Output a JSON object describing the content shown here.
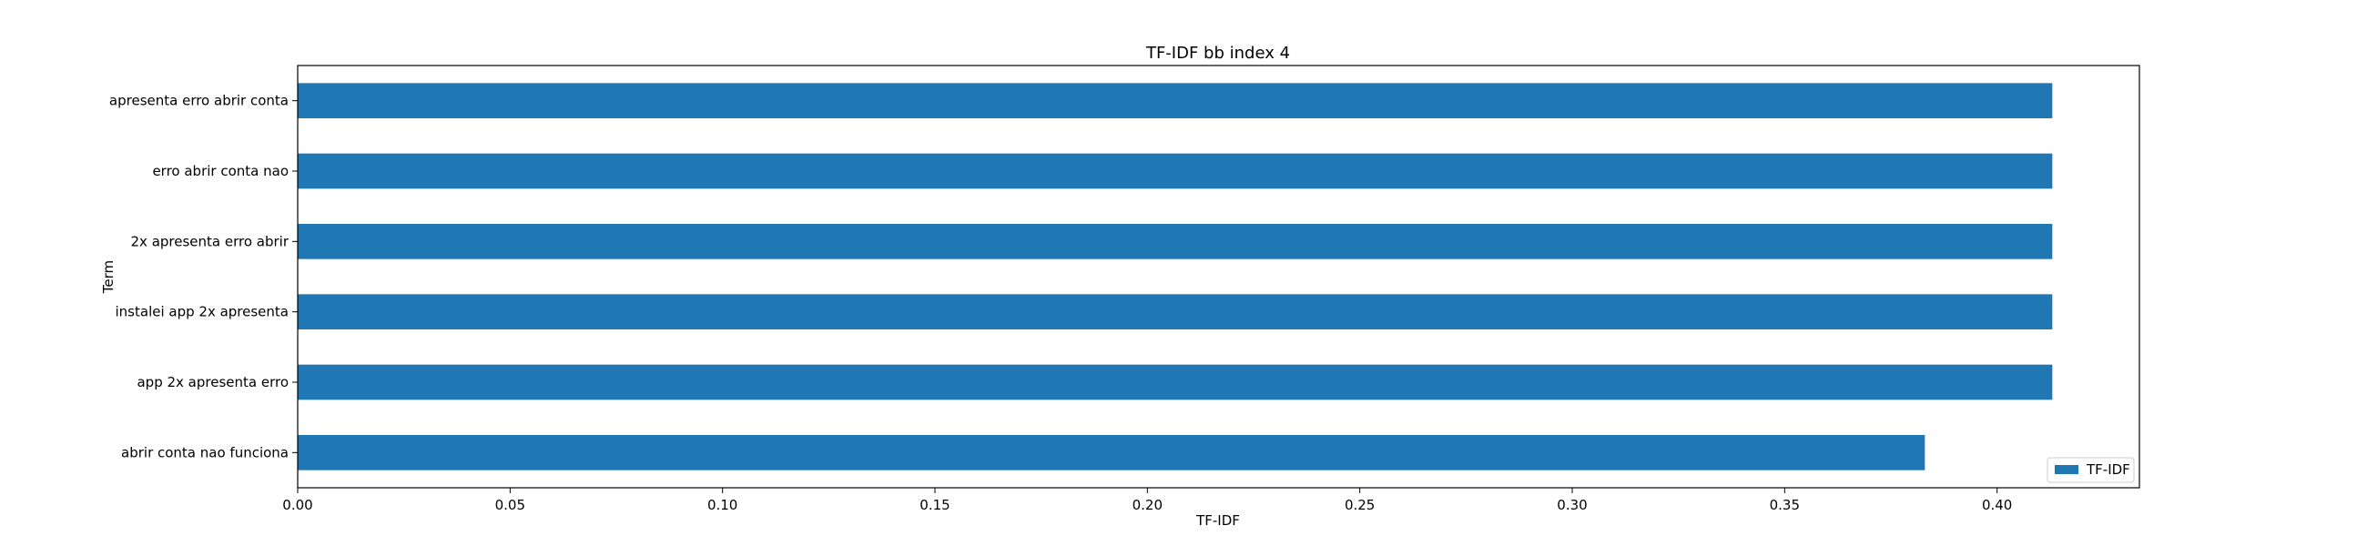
{
  "chart_data": {
    "type": "bar",
    "orientation": "horizontal",
    "title": "TF-IDF bb index 4",
    "xlabel": "TF-IDF",
    "ylabel": "Term",
    "categories": [
      "apresenta erro abrir conta",
      "erro abrir conta nao",
      "2x apresenta erro abrir",
      "instalei app 2x apresenta",
      "app 2x apresenta erro",
      "abrir conta nao funciona"
    ],
    "series": [
      {
        "name": "TF-IDF",
        "values": [
          0.413,
          0.413,
          0.413,
          0.413,
          0.413,
          0.383
        ],
        "color": "#1f77b4"
      }
    ],
    "xlim": [
      0,
      0.4335
    ],
    "xticks": [
      "0.00",
      "0.05",
      "0.10",
      "0.15",
      "0.20",
      "0.25",
      "0.30",
      "0.35",
      "0.40"
    ],
    "grid": false,
    "legend": "bottom-right"
  }
}
